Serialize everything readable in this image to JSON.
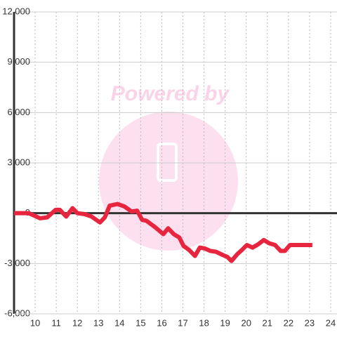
{
  "chart_data": {
    "type": "line",
    "watermark": "Powered by",
    "x": [
      9,
      9.7,
      10.23,
      10.57,
      10.97,
      11.17,
      11.47,
      11.77,
      12.0,
      12.33,
      12.67,
      13.07,
      13.3,
      13.53,
      13.9,
      14.23,
      14.57,
      14.83,
      15.07,
      15.27,
      15.7,
      16.07,
      16.3,
      16.57,
      16.83,
      17.03,
      17.3,
      17.57,
      17.8,
      18.03,
      18.3,
      18.57,
      18.9,
      19.1,
      19.3,
      19.57,
      19.83,
      20.03,
      20.3,
      20.57,
      20.83,
      21.1,
      21.37,
      21.63,
      21.83,
      22.07,
      23.13
    ],
    "series": [
      {
        "color": "#e8253f",
        "values": [
          0,
          0,
          -300,
          -250,
          200,
          200,
          -200,
          300,
          0,
          -50,
          -200,
          -550,
          -250,
          450,
          550,
          400,
          100,
          150,
          -400,
          -450,
          -850,
          -1250,
          -900,
          -1250,
          -1450,
          -1950,
          -2200,
          -2550,
          -2050,
          -2100,
          -2250,
          -2300,
          -2500,
          -2600,
          -2850,
          -2450,
          -2150,
          -1900,
          -2050,
          -1850,
          -1600,
          -1800,
          -1900,
          -2250,
          -2250,
          -1900,
          -1900
        ]
      }
    ],
    "xlim": [
      9,
      24.3
    ],
    "ylim": [
      -6000,
      12000
    ],
    "xticks": [
      10,
      11,
      12,
      13,
      14,
      15,
      16,
      17,
      18,
      19,
      20,
      21,
      22,
      23,
      24
    ],
    "yticks": [
      {
        "value": -6000,
        "label": "-6,000"
      },
      {
        "value": -3000,
        "label": "-3,000"
      },
      0,
      {
        "value": 3000,
        "label": "3,000"
      },
      {
        "value": 6000,
        "label": "6,000"
      },
      {
        "value": 9000,
        "label": "9,000"
      },
      {
        "value": 12000,
        "label": "12,000"
      }
    ],
    "grid": true
  }
}
